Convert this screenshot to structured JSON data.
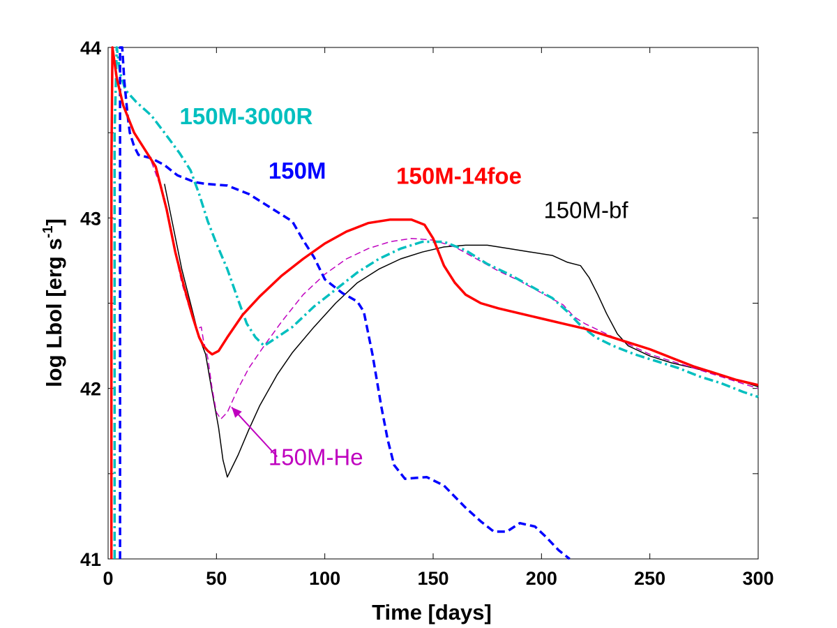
{
  "chart_data": {
    "type": "line",
    "xlabel": "Time [days]",
    "ylabel_main": "log Lbol [erg s",
    "ylabel_sup": "-1",
    "ylabel_close": "]",
    "xlim": [
      0,
      300
    ],
    "ylim": [
      41,
      44
    ],
    "xticks": [
      0,
      50,
      100,
      150,
      200,
      250,
      300
    ],
    "yticks": [
      41,
      42,
      43,
      44
    ],
    "yminor": [
      41.5,
      42.5,
      43.5
    ],
    "grid": false,
    "series": [
      {
        "name": "150M",
        "label": "150M",
        "color": "#0000ff",
        "style": "dashed-thick",
        "label_at": [
          74,
          43.23
        ],
        "label_bold": true,
        "points": [
          [
            5.5,
            41
          ],
          [
            5.5,
            44
          ],
          [
            6.5,
            44
          ],
          [
            7.5,
            43.8
          ],
          [
            9,
            43.6
          ],
          [
            10,
            43.5
          ],
          [
            12,
            43.42
          ],
          [
            14,
            43.37
          ],
          [
            20,
            43.35
          ],
          [
            26,
            43.31
          ],
          [
            32,
            43.25
          ],
          [
            40,
            43.21
          ],
          [
            45,
            43.2
          ],
          [
            55,
            43.19
          ],
          [
            65,
            43.14
          ],
          [
            75,
            43.06
          ],
          [
            85,
            42.98
          ],
          [
            90,
            42.87
          ],
          [
            95,
            42.77
          ],
          [
            100,
            42.64
          ],
          [
            108,
            42.56
          ],
          [
            115,
            42.51
          ],
          [
            118,
            42.45
          ],
          [
            122,
            42.2
          ],
          [
            126,
            41.9
          ],
          [
            129,
            41.7
          ],
          [
            132,
            41.55
          ],
          [
            137,
            41.47
          ],
          [
            147,
            41.48
          ],
          [
            155,
            41.43
          ],
          [
            165,
            41.3
          ],
          [
            172,
            41.22
          ],
          [
            178,
            41.16
          ],
          [
            184,
            41.16
          ],
          [
            190,
            41.21
          ],
          [
            197,
            41.19
          ],
          [
            202,
            41.13
          ],
          [
            208,
            41.05
          ],
          [
            213,
            41
          ]
        ]
      },
      {
        "name": "150M-3000R",
        "label": "150M-3000R",
        "color": "#00bfbf",
        "style": "dashdot-thick",
        "label_at": [
          33,
          43.55
        ],
        "label_bold": true,
        "points": [
          [
            3,
            41
          ],
          [
            3,
            43.5
          ],
          [
            4,
            44
          ],
          [
            5.5,
            43.85
          ],
          [
            8,
            43.75
          ],
          [
            13,
            43.68
          ],
          [
            20,
            43.6
          ],
          [
            26,
            43.5
          ],
          [
            33,
            43.38
          ],
          [
            38,
            43.28
          ],
          [
            42,
            43.14
          ],
          [
            46,
            42.98
          ],
          [
            50,
            42.85
          ],
          [
            55,
            42.7
          ],
          [
            60,
            42.52
          ],
          [
            64,
            42.38
          ],
          [
            68,
            42.3
          ],
          [
            72,
            42.25
          ],
          [
            78,
            42.3
          ],
          [
            85,
            42.36
          ],
          [
            95,
            42.48
          ],
          [
            105,
            42.58
          ],
          [
            115,
            42.68
          ],
          [
            125,
            42.76
          ],
          [
            135,
            42.82
          ],
          [
            145,
            42.86
          ],
          [
            155,
            42.86
          ],
          [
            165,
            42.81
          ],
          [
            175,
            42.73
          ],
          [
            185,
            42.67
          ],
          [
            195,
            42.6
          ],
          [
            205,
            42.53
          ],
          [
            212,
            42.45
          ],
          [
            218,
            42.37
          ],
          [
            225,
            42.3
          ],
          [
            233,
            42.25
          ],
          [
            243,
            42.2
          ],
          [
            253,
            42.16
          ],
          [
            263,
            42.12
          ],
          [
            273,
            42.07
          ],
          [
            283,
            42.03
          ],
          [
            293,
            41.98
          ],
          [
            300,
            41.95
          ]
        ]
      },
      {
        "name": "150M-14foe",
        "label": "150M-14foe",
        "color": "#ff0000",
        "style": "solid-thick",
        "label_at": [
          133,
          43.2
        ],
        "label_bold": true,
        "points": [
          [
            1.5,
            41
          ],
          [
            1.5,
            43.3
          ],
          [
            2,
            44
          ],
          [
            4,
            43.82
          ],
          [
            7,
            43.66
          ],
          [
            12,
            43.5
          ],
          [
            17,
            43.4
          ],
          [
            22,
            43.3
          ],
          [
            27,
            43.05
          ],
          [
            31,
            42.8
          ],
          [
            35,
            42.6
          ],
          [
            39,
            42.42
          ],
          [
            42,
            42.3
          ],
          [
            44,
            42.25
          ],
          [
            46,
            42.22
          ],
          [
            48,
            42.2
          ],
          [
            51,
            42.22
          ],
          [
            55,
            42.3
          ],
          [
            62,
            42.43
          ],
          [
            70,
            42.54
          ],
          [
            80,
            42.66
          ],
          [
            90,
            42.76
          ],
          [
            100,
            42.85
          ],
          [
            110,
            42.92
          ],
          [
            120,
            42.97
          ],
          [
            130,
            42.99
          ],
          [
            140,
            42.99
          ],
          [
            146,
            42.96
          ],
          [
            150,
            42.88
          ],
          [
            155,
            42.72
          ],
          [
            160,
            42.62
          ],
          [
            165,
            42.55
          ],
          [
            172,
            42.5
          ],
          [
            180,
            42.47
          ],
          [
            190,
            42.44
          ],
          [
            200,
            42.41
          ],
          [
            210,
            42.38
          ],
          [
            220,
            42.35
          ],
          [
            230,
            42.31
          ],
          [
            240,
            42.27
          ],
          [
            250,
            42.23
          ],
          [
            260,
            42.18
          ],
          [
            270,
            42.13
          ],
          [
            280,
            42.09
          ],
          [
            290,
            42.05
          ],
          [
            300,
            42.02
          ]
        ]
      },
      {
        "name": "150M-bf",
        "label": "150M-bf",
        "color": "#000000",
        "style": "solid-thin",
        "label_at": [
          201,
          43.0
        ],
        "label_bold": false,
        "points": [
          [
            26,
            43.2
          ],
          [
            30,
            42.95
          ],
          [
            34,
            42.7
          ],
          [
            38,
            42.5
          ],
          [
            42,
            42.3
          ],
          [
            45,
            42.2
          ],
          [
            48,
            41.98
          ],
          [
            51,
            41.77
          ],
          [
            53,
            41.58
          ],
          [
            55,
            41.48
          ],
          [
            60,
            41.61
          ],
          [
            65,
            41.76
          ],
          [
            70,
            41.9
          ],
          [
            78,
            42.08
          ],
          [
            85,
            42.21
          ],
          [
            95,
            42.36
          ],
          [
            105,
            42.5
          ],
          [
            115,
            42.62
          ],
          [
            125,
            42.7
          ],
          [
            135,
            42.76
          ],
          [
            145,
            42.8
          ],
          [
            155,
            42.83
          ],
          [
            165,
            42.84
          ],
          [
            175,
            42.84
          ],
          [
            185,
            42.82
          ],
          [
            195,
            42.8
          ],
          [
            205,
            42.78
          ],
          [
            212,
            42.74
          ],
          [
            218,
            42.72
          ],
          [
            222,
            42.65
          ],
          [
            226,
            42.55
          ],
          [
            230,
            42.44
          ],
          [
            235,
            42.32
          ],
          [
            240,
            42.25
          ],
          [
            250,
            42.19
          ],
          [
            260,
            42.15
          ],
          [
            270,
            42.12
          ],
          [
            280,
            42.09
          ],
          [
            290,
            42.05
          ],
          [
            300,
            42.01
          ]
        ]
      },
      {
        "name": "150M-He",
        "label": "150M-He",
        "color": "#bf00bf",
        "style": "dashed-thin",
        "label_at": [
          74,
          41.55
        ],
        "label_bold": false,
        "points": [
          [
            20,
            43.33
          ],
          [
            26,
            43.12
          ],
          [
            30,
            42.85
          ],
          [
            34,
            42.62
          ],
          [
            38,
            42.45
          ],
          [
            41,
            42.35
          ],
          [
            43,
            42.36
          ],
          [
            44,
            42.28
          ],
          [
            46,
            42.18
          ],
          [
            48,
            42.0
          ],
          [
            50,
            41.86
          ],
          [
            52,
            41.82
          ],
          [
            55,
            41.86
          ],
          [
            60,
            42.0
          ],
          [
            65,
            42.12
          ],
          [
            72,
            42.25
          ],
          [
            80,
            42.39
          ],
          [
            90,
            42.55
          ],
          [
            100,
            42.67
          ],
          [
            110,
            42.76
          ],
          [
            120,
            42.82
          ],
          [
            130,
            42.86
          ],
          [
            140,
            42.88
          ],
          [
            150,
            42.87
          ],
          [
            160,
            42.83
          ],
          [
            170,
            42.76
          ],
          [
            180,
            42.69
          ],
          [
            190,
            42.63
          ],
          [
            200,
            42.56
          ],
          [
            210,
            42.49
          ],
          [
            215,
            42.42
          ],
          [
            220,
            42.38
          ],
          [
            230,
            42.32
          ],
          [
            240,
            42.26
          ],
          [
            250,
            42.2
          ],
          [
            260,
            42.16
          ],
          [
            270,
            42.12
          ],
          [
            280,
            42.08
          ],
          [
            290,
            42.04
          ],
          [
            300,
            42.0
          ]
        ]
      }
    ],
    "annotations": [
      {
        "target": "150M-He",
        "from": [
          78,
          41.6
        ],
        "to": [
          57,
          41.89
        ],
        "color": "#bf00bf"
      }
    ]
  }
}
